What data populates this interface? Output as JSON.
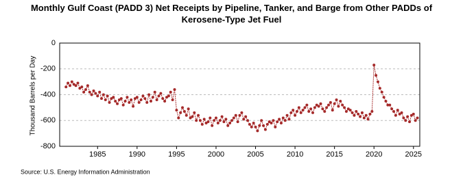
{
  "chart_data": {
    "type": "line",
    "title": "Monthly Gulf Coast (PADD 3) Net Receipts by Pipeline, Tanker, and Barge from Other PADDs of Kerosene-Type Jet Fuel",
    "ylabel": "Thousand Barrels per Day",
    "source": "Source: U.S. Energy Information Administration",
    "color": "#a52a2a",
    "markers": true,
    "grid": true,
    "xlim": [
      1980.2,
      2025.8
    ],
    "xticks": [
      1985,
      1990,
      1995,
      2000,
      2005,
      2010,
      2015,
      2020,
      2025
    ],
    "ylim": [
      -800,
      0
    ],
    "yticks": [
      0,
      -200,
      -400,
      -600,
      -800
    ],
    "x": [
      1981,
      1981.25,
      1981.5,
      1981.75,
      1982,
      1982.25,
      1982.5,
      1982.75,
      1983,
      1983.25,
      1983.5,
      1983.75,
      1984,
      1984.25,
      1984.5,
      1984.75,
      1985,
      1985.25,
      1985.5,
      1985.75,
      1986,
      1986.25,
      1986.5,
      1986.75,
      1987,
      1987.25,
      1987.5,
      1987.75,
      1988,
      1988.25,
      1988.5,
      1988.75,
      1989,
      1989.25,
      1989.5,
      1989.75,
      1990,
      1990.25,
      1990.5,
      1990.75,
      1991,
      1991.25,
      1991.5,
      1991.75,
      1992,
      1992.25,
      1992.5,
      1992.75,
      1993,
      1993.25,
      1993.5,
      1993.75,
      1994,
      1994.25,
      1994.5,
      1994.75,
      1995,
      1995.25,
      1995.5,
      1995.75,
      1996,
      1996.25,
      1996.5,
      1996.75,
      1997,
      1997.25,
      1997.5,
      1997.75,
      1998,
      1998.25,
      1998.5,
      1998.75,
      1999,
      1999.25,
      1999.5,
      1999.75,
      2000,
      2000.25,
      2000.5,
      2000.75,
      2001,
      2001.25,
      2001.5,
      2001.75,
      2002,
      2002.25,
      2002.5,
      2002.75,
      2003,
      2003.25,
      2003.5,
      2003.75,
      2004,
      2004.25,
      2004.5,
      2004.75,
      2005,
      2005.25,
      2005.5,
      2005.75,
      2006,
      2006.25,
      2006.5,
      2006.75,
      2007,
      2007.25,
      2007.5,
      2007.75,
      2008,
      2008.25,
      2008.5,
      2008.75,
      2009,
      2009.25,
      2009.5,
      2009.75,
      2010,
      2010.25,
      2010.5,
      2010.75,
      2011,
      2011.25,
      2011.5,
      2011.75,
      2012,
      2012.25,
      2012.5,
      2012.75,
      2013,
      2013.25,
      2013.5,
      2013.75,
      2014,
      2014.25,
      2014.5,
      2014.75,
      2015,
      2015.25,
      2015.5,
      2015.75,
      2016,
      2016.25,
      2016.5,
      2016.75,
      2017,
      2017.25,
      2017.5,
      2017.75,
      2018,
      2018.25,
      2018.5,
      2018.75,
      2019,
      2019.25,
      2019.5,
      2019.75,
      2020,
      2020.25,
      2020.5,
      2020.75,
      2021,
      2021.25,
      2021.5,
      2021.75,
      2022,
      2022.25,
      2022.5,
      2022.75,
      2023,
      2023.25,
      2023.5,
      2023.75,
      2024,
      2024.25,
      2024.5,
      2024.75,
      2025,
      2025.25,
      2025.5
    ],
    "values": [
      -340,
      -310,
      -330,
      -300,
      -320,
      -330,
      -310,
      -350,
      -340,
      -380,
      -360,
      -330,
      -380,
      -400,
      -370,
      -390,
      -410,
      -380,
      -430,
      -400,
      -440,
      -410,
      -460,
      -430,
      -420,
      -450,
      -470,
      -440,
      -430,
      -480,
      -450,
      -420,
      -460,
      -440,
      -490,
      -430,
      -420,
      -460,
      -440,
      -410,
      -430,
      -460,
      -400,
      -450,
      -420,
      -380,
      -440,
      -410,
      -390,
      -430,
      -450,
      -420,
      -410,
      -380,
      -440,
      -360,
      -520,
      -580,
      -540,
      -500,
      -530,
      -560,
      -510,
      -580,
      -570,
      -540,
      -600,
      -560,
      -600,
      -630,
      -590,
      -620,
      -610,
      -580,
      -640,
      -600,
      -580,
      -620,
      -600,
      -570,
      -610,
      -590,
      -640,
      -620,
      -600,
      -580,
      -560,
      -610,
      -560,
      -540,
      -590,
      -570,
      -600,
      -630,
      -650,
      -620,
      -650,
      -680,
      -640,
      -600,
      -640,
      -670,
      -630,
      -610,
      -620,
      -600,
      -650,
      -610,
      -590,
      -620,
      -580,
      -600,
      -560,
      -590,
      -540,
      -520,
      -560,
      -530,
      -500,
      -540,
      -520,
      -500,
      -480,
      -530,
      -510,
      -540,
      -500,
      -480,
      -490,
      -470,
      -510,
      -530,
      -500,
      -480,
      -460,
      -520,
      -470,
      -440,
      -490,
      -450,
      -480,
      -500,
      -530,
      -510,
      -520,
      -540,
      -560,
      -530,
      -550,
      -570,
      -540,
      -580,
      -560,
      -590,
      -550,
      -530,
      -170,
      -250,
      -300,
      -350,
      -380,
      -420,
      -450,
      -480,
      -480,
      -510,
      -530,
      -560,
      -520,
      -550,
      -540,
      -580,
      -600,
      -570,
      -610,
      -560,
      -550,
      -600,
      -580
    ]
  }
}
